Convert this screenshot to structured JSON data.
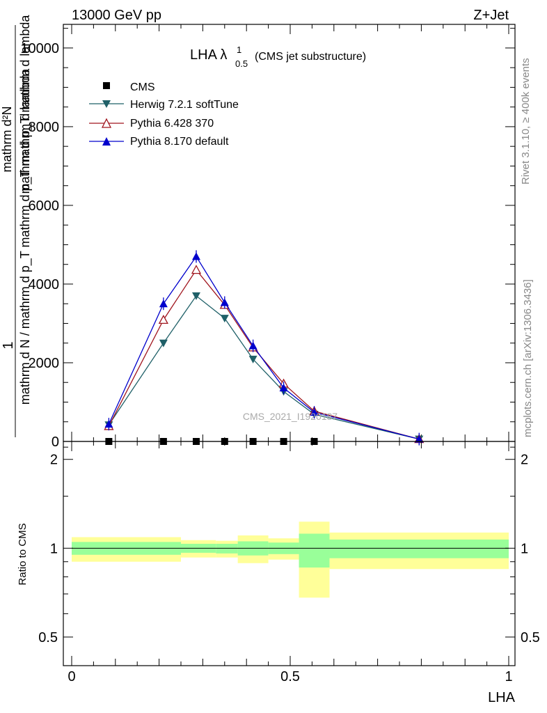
{
  "header": {
    "left_label": "13000 GeV pp",
    "right_label": "Z+Jet"
  },
  "side_labels": {
    "rivet": "Rivet 3.1.10, ≥ 400k events",
    "mcplots": "mcplots.cern.ch [arXiv:1306.3436]"
  },
  "chart_data": [
    {
      "type": "line",
      "panel": "main",
      "title": "LHA λ",
      "title_sup": "1",
      "title_sub": "0.5",
      "title_suffix": "(CMS jet substructure)",
      "watermark": "CMS_2021_I1920187",
      "ylabel_line1": "1",
      "ylabel_line2": "mathrm d N / mathrm d p_T mathrm d p_T mathrm d lambda",
      "ylabel_numer": "mathrm d²N",
      "ylabel_numer_line2": "mathrm d p_T mathrm d lambda",
      "xlim": [
        0,
        1
      ],
      "ylim": [
        0,
        10600
      ],
      "yticks": [
        {
          "value": 0,
          "label": "0"
        },
        {
          "value": 2000,
          "label": "2000"
        },
        {
          "value": 4000,
          "label": "4000"
        },
        {
          "value": 6000,
          "label": "6000"
        },
        {
          "value": 8000,
          "label": "8000"
        },
        {
          "value": 10000,
          "label": "10000"
        }
      ],
      "legend_position": "top-left",
      "series": [
        {
          "name": "CMS",
          "color": "#000000",
          "marker": "square",
          "x": [
            0.085,
            0.21,
            0.285,
            0.35,
            0.415,
            0.485,
            0.555
          ],
          "y": [
            0,
            0,
            0,
            0,
            0,
            0,
            0
          ]
        },
        {
          "name": "Herwig 7.2.1 softTune",
          "color": "#1f6068",
          "marker": "triangle-down",
          "x": [
            0.085,
            0.21,
            0.285,
            0.35,
            0.415,
            0.485,
            0.555,
            0.795
          ],
          "y": [
            420,
            2500,
            3700,
            3130,
            2090,
            1270,
            690,
            60
          ]
        },
        {
          "name": "Pythia 6.428 370",
          "color": "#a0151e",
          "marker": "triangle-open",
          "x": [
            0.085,
            0.21,
            0.285,
            0.35,
            0.415,
            0.485,
            0.555,
            0.795
          ],
          "y": [
            390,
            3090,
            4360,
            3470,
            2390,
            1470,
            770,
            60
          ]
        },
        {
          "name": "Pythia 8.170 default",
          "color": "#0000cc",
          "marker": "triangle-up",
          "x": [
            0.085,
            0.21,
            0.285,
            0.35,
            0.415,
            0.485,
            0.555,
            0.795
          ],
          "y": [
            440,
            3500,
            4700,
            3530,
            2430,
            1360,
            740,
            60
          ]
        }
      ]
    },
    {
      "type": "area",
      "panel": "ratio",
      "ylabel": "Ratio to CMS",
      "xlabel": "LHA",
      "ylim": [
        0.4,
        2.3
      ],
      "xticks": [
        {
          "value": 0,
          "label": "0"
        },
        {
          "value": 0.5,
          "label": "0.5"
        },
        {
          "value": 1,
          "label": "1"
        }
      ],
      "yticks": [
        {
          "value": 0.5,
          "label": "0.5"
        },
        {
          "value": 1,
          "label": "1"
        },
        {
          "value": 2,
          "label": "2"
        }
      ],
      "band_colors": {
        "outer": "#ffff99",
        "inner": "#99ff99"
      },
      "bins": [
        {
          "x0": 0.0,
          "x1": 0.25,
          "outer": [
            0.9,
            1.09
          ],
          "inner": [
            0.95,
            1.05
          ]
        },
        {
          "x0": 0.25,
          "x1": 0.33,
          "outer": [
            0.93,
            1.065
          ],
          "inner": [
            0.965,
            1.035
          ]
        },
        {
          "x0": 0.33,
          "x1": 0.38,
          "outer": [
            0.93,
            1.06
          ],
          "inner": [
            0.96,
            1.035
          ]
        },
        {
          "x0": 0.38,
          "x1": 0.45,
          "outer": [
            0.89,
            1.105
          ],
          "inner": [
            0.945,
            1.055
          ]
        },
        {
          "x0": 0.45,
          "x1": 0.52,
          "outer": [
            0.915,
            1.08
          ],
          "inner": [
            0.955,
            1.045
          ]
        },
        {
          "x0": 0.52,
          "x1": 0.59,
          "outer": [
            0.68,
            1.23
          ],
          "inner": [
            0.86,
            1.12
          ]
        },
        {
          "x0": 0.59,
          "x1": 1.0,
          "outer": [
            0.85,
            1.13
          ],
          "inner": [
            0.925,
            1.07
          ]
        }
      ]
    }
  ]
}
